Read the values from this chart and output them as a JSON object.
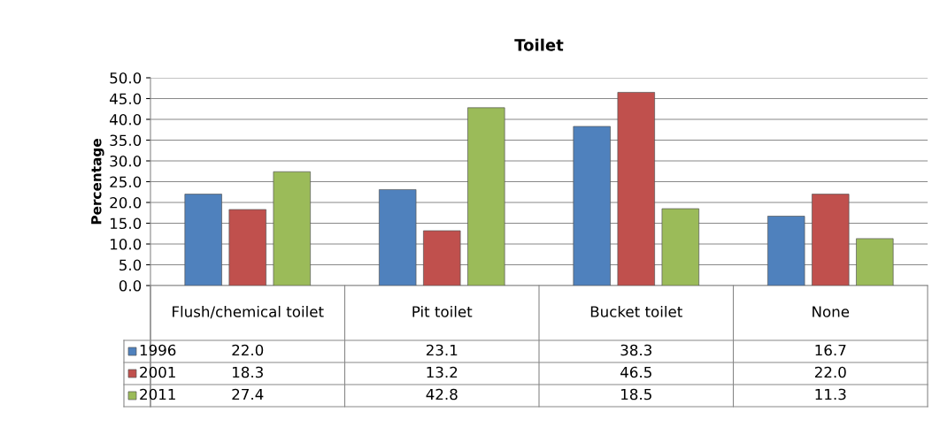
{
  "chart_data": {
    "type": "bar",
    "title": "Toilet",
    "ylabel": "Percentage",
    "categories": [
      "Flush/chemical toilet",
      "Pit toilet",
      "Bucket toilet",
      "None"
    ],
    "series": [
      {
        "name": "1996",
        "color": "#4f81bd",
        "values": [
          22.0,
          23.1,
          38.3,
          16.7
        ],
        "value_labels": [
          "22.0",
          "23.1",
          "38.3",
          "16.7"
        ]
      },
      {
        "name": "2001",
        "color": "#c0504d",
        "values": [
          18.3,
          13.2,
          46.5,
          22.0
        ],
        "value_labels": [
          "18.3",
          "13.2",
          "46.5",
          "22.0"
        ]
      },
      {
        "name": "2011",
        "color": "#9bbb59",
        "values": [
          27.4,
          42.8,
          18.5,
          11.3
        ],
        "value_labels": [
          "27.4",
          "42.8",
          "18.5",
          "11.3"
        ]
      }
    ],
    "ylim": [
      0,
      50
    ],
    "yticks": [
      {
        "value": 0,
        "label": "0.0"
      },
      {
        "value": 5,
        "label": "5.0"
      },
      {
        "value": 10,
        "label": "10.0"
      },
      {
        "value": 15,
        "label": "15.0"
      },
      {
        "value": 20,
        "label": "20.0"
      },
      {
        "value": 25,
        "label": "25.0"
      },
      {
        "value": 30,
        "label": "30.0"
      },
      {
        "value": 35,
        "label": "35.0"
      },
      {
        "value": 40,
        "label": "40.0"
      },
      {
        "value": 45,
        "label": "45.0"
      },
      {
        "value": 50,
        "label": "50.0"
      }
    ],
    "grid": "y",
    "legend": "bottom"
  }
}
